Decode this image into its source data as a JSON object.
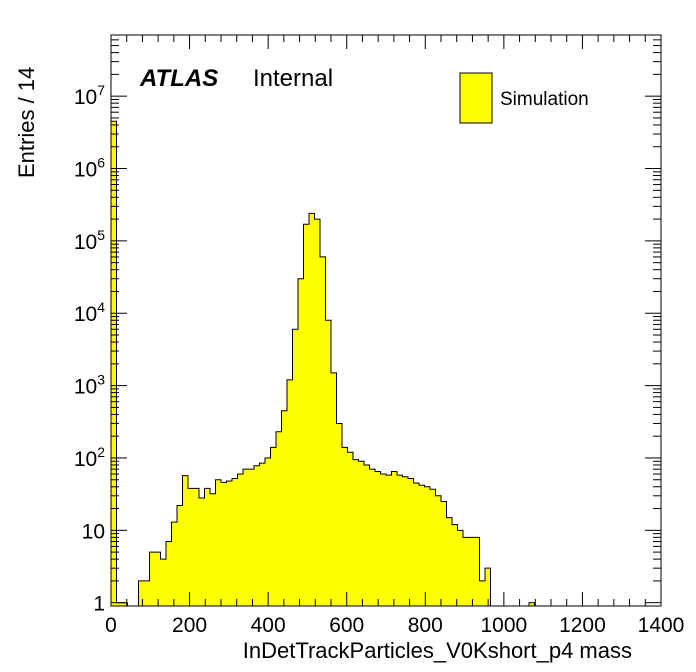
{
  "colors": {
    "fill": "#ffff00",
    "line": "#000000",
    "background": "#ffffff"
  },
  "chart_data": {
    "type": "bar",
    "title": "",
    "xlabel": "InDetTrackParticles_V0Kshort_p4 mass",
    "ylabel": "Entries / 14",
    "xlim": [
      0,
      1400
    ],
    "ylim": [
      0.9,
      70000000
    ],
    "yscale": "log",
    "bin_width": 14,
    "x_ticks": [
      0,
      200,
      400,
      600,
      800,
      1000,
      1200,
      1400
    ],
    "x_tick_labels": [
      "0",
      "200",
      "400",
      "600",
      "800",
      "1000",
      "1200",
      "1400"
    ],
    "y_ticks": [
      {
        "value": 1,
        "base": "1",
        "exp": ""
      },
      {
        "value": 10,
        "base": "10",
        "exp": ""
      },
      {
        "value": 100,
        "base": "10",
        "exp": "2"
      },
      {
        "value": 1000,
        "base": "10",
        "exp": "3"
      },
      {
        "value": 10000,
        "base": "10",
        "exp": "4"
      },
      {
        "value": 100000,
        "base": "10",
        "exp": "5"
      },
      {
        "value": 1000000,
        "base": "10",
        "exp": "6"
      },
      {
        "value": 10000000,
        "base": "10",
        "exp": "7"
      }
    ],
    "bins": [
      {
        "x": 0,
        "y": 4500000
      },
      {
        "x": 14,
        "y": 1
      },
      {
        "x": 28,
        "y": 1
      },
      {
        "x": 70,
        "y": 2
      },
      {
        "x": 84,
        "y": 2
      },
      {
        "x": 98,
        "y": 5
      },
      {
        "x": 112,
        "y": 5
      },
      {
        "x": 126,
        "y": 4
      },
      {
        "x": 140,
        "y": 7
      },
      {
        "x": 154,
        "y": 13
      },
      {
        "x": 168,
        "y": 22
      },
      {
        "x": 182,
        "y": 57
      },
      {
        "x": 196,
        "y": 38
      },
      {
        "x": 210,
        "y": 38
      },
      {
        "x": 224,
        "y": 28
      },
      {
        "x": 238,
        "y": 38
      },
      {
        "x": 252,
        "y": 32
      },
      {
        "x": 266,
        "y": 50
      },
      {
        "x": 280,
        "y": 46
      },
      {
        "x": 294,
        "y": 48
      },
      {
        "x": 308,
        "y": 52
      },
      {
        "x": 322,
        "y": 60
      },
      {
        "x": 336,
        "y": 70
      },
      {
        "x": 350,
        "y": 70
      },
      {
        "x": 364,
        "y": 78
      },
      {
        "x": 378,
        "y": 85
      },
      {
        "x": 392,
        "y": 100
      },
      {
        "x": 406,
        "y": 140
      },
      {
        "x": 420,
        "y": 230
      },
      {
        "x": 434,
        "y": 450
      },
      {
        "x": 448,
        "y": 1200
      },
      {
        "x": 462,
        "y": 6000
      },
      {
        "x": 476,
        "y": 30000
      },
      {
        "x": 490,
        "y": 170000
      },
      {
        "x": 504,
        "y": 240000
      },
      {
        "x": 518,
        "y": 200000
      },
      {
        "x": 532,
        "y": 60000
      },
      {
        "x": 546,
        "y": 8000
      },
      {
        "x": 560,
        "y": 1500
      },
      {
        "x": 574,
        "y": 300
      },
      {
        "x": 588,
        "y": 140
      },
      {
        "x": 602,
        "y": 120
      },
      {
        "x": 616,
        "y": 95
      },
      {
        "x": 630,
        "y": 90
      },
      {
        "x": 644,
        "y": 80
      },
      {
        "x": 658,
        "y": 70
      },
      {
        "x": 672,
        "y": 65
      },
      {
        "x": 686,
        "y": 60
      },
      {
        "x": 700,
        "y": 58
      },
      {
        "x": 714,
        "y": 65
      },
      {
        "x": 728,
        "y": 58
      },
      {
        "x": 742,
        "y": 55
      },
      {
        "x": 756,
        "y": 52
      },
      {
        "x": 770,
        "y": 45
      },
      {
        "x": 784,
        "y": 42
      },
      {
        "x": 798,
        "y": 40
      },
      {
        "x": 812,
        "y": 37
      },
      {
        "x": 826,
        "y": 30
      },
      {
        "x": 840,
        "y": 25
      },
      {
        "x": 854,
        "y": 15
      },
      {
        "x": 868,
        "y": 12
      },
      {
        "x": 882,
        "y": 10
      },
      {
        "x": 896,
        "y": 8
      },
      {
        "x": 910,
        "y": 8
      },
      {
        "x": 924,
        "y": 8
      },
      {
        "x": 938,
        "y": 2
      },
      {
        "x": 952,
        "y": 3
      },
      {
        "x": 1064,
        "y": 1
      }
    ],
    "legend": {
      "entries": [
        "Simulation"
      ],
      "position": "top-right"
    },
    "annotations": {
      "experiment": "ATLAS",
      "status": "Internal"
    }
  }
}
